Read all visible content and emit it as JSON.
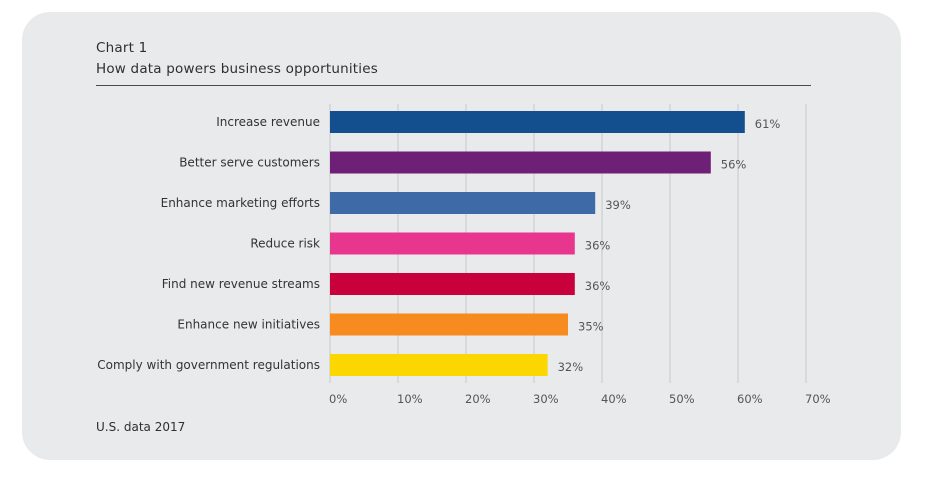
{
  "header": {
    "chart_number": "Chart 1",
    "title": "How data powers business opportunities"
  },
  "footnote": "U.S. data 2017",
  "chart_data": {
    "type": "bar",
    "orientation": "horizontal",
    "categories": [
      "Increase revenue",
      "Better serve customers",
      "Enhance marketing efforts",
      "Reduce risk",
      "Find new revenue streams",
      "Enhance new initiatives",
      "Comply with government regulations"
    ],
    "values": [
      61,
      56,
      39,
      36,
      36,
      35,
      32
    ],
    "value_labels": [
      "61%",
      "56%",
      "39%",
      "36%",
      "36%",
      "35%",
      "32%"
    ],
    "colors": [
      "#134f8f",
      "#6e1f76",
      "#3f6aa8",
      "#e8368f",
      "#c8003c",
      "#f78b1f",
      "#fcd600"
    ],
    "xlim": [
      0,
      70
    ],
    "x_ticks": [
      0,
      10,
      20,
      30,
      40,
      50,
      60,
      70
    ],
    "x_tick_labels": [
      "0%",
      "10%",
      "20%",
      "30%",
      "40%",
      "50%",
      "60%",
      "70%"
    ],
    "grid": true,
    "title": "How data powers business opportunities",
    "xlabel": "",
    "ylabel": ""
  }
}
